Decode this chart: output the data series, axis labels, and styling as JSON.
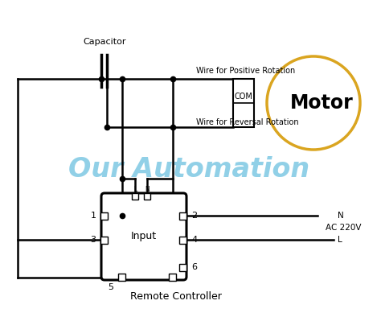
{
  "bg_color": "#ffffff",
  "line_color": "#000000",
  "watermark_text": "Our Automation",
  "watermark_color": "#7ec8e3",
  "watermark_alpha": 0.85,
  "title_bottom": "Remote Controller",
  "motor_label": "Motor",
  "motor_circle_color": "#DAA520",
  "com_label": "COM",
  "capacitor_label": "Capacitor",
  "pos_rotation_label": "Wire for Positive Rotation",
  "rev_rotation_label": "Wire for Reversal Rotation",
  "input_label": "Input",
  "L_label": "L",
  "N_label": "N",
  "ac_label": "AC 220V",
  "LN_labels": [
    "L",
    "N"
  ],
  "lw": 1.8
}
